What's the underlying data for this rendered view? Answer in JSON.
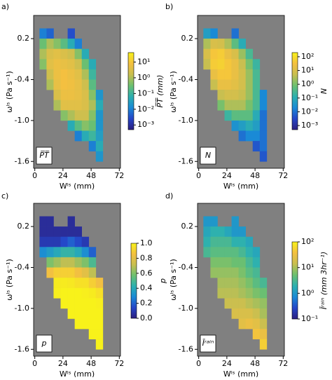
{
  "chart_data": [
    {
      "type": "heatmap",
      "panel_label": "a)",
      "inset_label": "P̅T̅",
      "xlabel": "Wˡˢ (mm)",
      "ylabel": "ωˡˢ (Pa s⁻¹)",
      "colorbar_label": "P̅T̅ (mm)",
      "xlim": [
        -1,
        73
      ],
      "ylim": [
        -1.7,
        0.54
      ],
      "xticks": [
        0,
        24,
        48,
        72
      ],
      "yticks": [
        0.2,
        -0.4,
        {
          "value": -1,
          "label": "-1.0"
        },
        -1.6
      ],
      "x_edges": [
        4,
        10,
        16,
        22,
        28,
        34,
        40,
        46,
        52,
        58,
        64
      ],
      "y_edges": [
        0.35,
        0.2,
        0.05,
        -0.1,
        -0.25,
        -0.4,
        -0.55,
        -0.7,
        -0.85,
        -1.0,
        -1.15,
        -1.3,
        -1.45,
        -1.6
      ],
      "log_color": true,
      "clim": [
        0.0005,
        40
      ],
      "cticks": [
        {
          "value": 10,
          "label": "10¹"
        },
        {
          "value": 1,
          "label": "10⁰"
        },
        {
          "value": 0.1,
          "label": "10⁻¹"
        },
        {
          "value": 0.01,
          "label": "10⁻²"
        },
        {
          "value": 0.001,
          "label": "10⁻³"
        }
      ],
      "colormap": [
        "#2c1f80",
        "#2546c8",
        "#1a8ad6",
        "#2cb0b0",
        "#6cc070",
        "#c8bf50",
        "#f4c040",
        "#f8f21a"
      ],
      "background": "#808080",
      "values": [
        [
          0.01,
          0.005,
          null,
          null,
          0.003,
          null,
          null,
          null,
          null,
          null
        ],
        [
          0.3,
          1,
          0.5,
          0.2,
          0.05,
          0.01,
          null,
          null,
          null,
          null
        ],
        [
          1,
          3,
          4,
          3,
          2,
          0.5,
          0.05,
          null,
          null,
          null
        ],
        [
          0.5,
          4,
          6,
          5,
          4,
          2,
          0.3,
          0.05,
          null,
          null
        ],
        [
          null,
          2,
          6,
          8,
          6,
          4,
          1,
          0.1,
          null,
          null
        ],
        [
          null,
          1,
          5,
          8,
          7,
          5,
          2,
          0.2,
          null,
          null
        ],
        [
          null,
          null,
          3,
          6,
          6,
          5,
          3,
          0.5,
          0.02,
          null
        ],
        [
          null,
          null,
          1,
          4,
          4,
          4,
          3,
          1,
          0.05,
          null
        ],
        [
          null,
          null,
          null,
          0.5,
          1,
          2,
          2,
          0.5,
          0.02,
          null
        ],
        [
          null,
          null,
          null,
          null,
          0.05,
          0.2,
          0.5,
          0.3,
          0.02,
          null
        ],
        [
          null,
          null,
          null,
          null,
          null,
          0.01,
          0.05,
          0.1,
          0.03,
          null
        ],
        [
          null,
          null,
          null,
          null,
          null,
          null,
          null,
          0.01,
          0.05,
          null
        ],
        [
          null,
          null,
          null,
          null,
          null,
          null,
          null,
          null,
          0.02,
          null
        ]
      ]
    },
    {
      "type": "heatmap",
      "panel_label": "b)",
      "inset_label": "N",
      "xlabel": "Wˡˢ (mm)",
      "ylabel": "ωˡˢ (Pa s⁻¹)",
      "colorbar_label": "N",
      "xlim": [
        -1,
        73
      ],
      "ylim": [
        -1.7,
        0.54
      ],
      "xticks": [
        0,
        24,
        48,
        72
      ],
      "yticks": [
        0.2,
        -0.4,
        {
          "value": -1,
          "label": "-1.0"
        },
        -1.6
      ],
      "x_edges": [
        4,
        10,
        16,
        22,
        28,
        34,
        40,
        46,
        52,
        58,
        64
      ],
      "y_edges": [
        0.35,
        0.2,
        0.05,
        -0.1,
        -0.25,
        -0.4,
        -0.55,
        -0.7,
        -0.85,
        -1.0,
        -1.15,
        -1.3,
        -1.45,
        -1.6
      ],
      "log_color": true,
      "clim": [
        0.0005,
        200
      ],
      "cticks": [
        {
          "value": 100,
          "label": "10²"
        },
        {
          "value": 10,
          "label": "10¹"
        },
        {
          "value": 1,
          "label": "10⁰"
        },
        {
          "value": 0.1,
          "label": "10⁻¹"
        },
        {
          "value": 0.01,
          "label": "10⁻²"
        },
        {
          "value": 0.001,
          "label": "10⁻³"
        }
      ],
      "colormap": [
        "#2c1f80",
        "#2546c8",
        "#1a8ad6",
        "#2cb0b0",
        "#6cc070",
        "#c8bf50",
        "#f4c040",
        "#f8f21a"
      ],
      "background": "#808080",
      "values": [
        [
          0.05,
          0.02,
          null,
          null,
          0.01,
          null,
          null,
          null,
          null,
          null
        ],
        [
          3,
          10,
          8,
          3,
          0.5,
          0.1,
          null,
          null,
          null,
          null
        ],
        [
          10,
          40,
          50,
          20,
          10,
          2,
          0.3,
          null,
          null,
          null
        ],
        [
          5,
          50,
          60,
          40,
          20,
          5,
          1,
          0.2,
          null,
          null
        ],
        [
          null,
          20,
          40,
          40,
          20,
          8,
          2,
          0.3,
          null,
          null
        ],
        [
          null,
          5,
          20,
          20,
          15,
          8,
          2,
          0.3,
          null,
          null
        ],
        [
          null,
          null,
          5,
          8,
          8,
          5,
          2,
          0.3,
          0.02,
          null
        ],
        [
          null,
          null,
          1,
          3,
          3,
          3,
          1,
          0.3,
          0.02,
          null
        ],
        [
          null,
          null,
          null,
          0.2,
          0.5,
          0.5,
          0.5,
          0.1,
          0.01,
          null
        ],
        [
          null,
          null,
          null,
          null,
          0.03,
          0.05,
          0.1,
          0.05,
          0.01,
          null
        ],
        [
          null,
          null,
          null,
          null,
          null,
          0.01,
          0.02,
          0.02,
          0.01,
          null
        ],
        [
          null,
          null,
          null,
          null,
          null,
          null,
          null,
          0.005,
          0.01,
          null
        ],
        [
          null,
          null,
          null,
          null,
          null,
          null,
          null,
          null,
          0.005,
          null
        ]
      ]
    },
    {
      "type": "heatmap",
      "panel_label": "c)",
      "inset_label": "p",
      "xlabel": "Wˡˢ (mm)",
      "ylabel": "ωˡˢ (Pa s⁻¹)",
      "colorbar_label": "p",
      "xlim": [
        -1,
        73
      ],
      "ylim": [
        -1.7,
        0.54
      ],
      "xticks": [
        0,
        24,
        48,
        72
      ],
      "yticks": [
        0.2,
        -0.4,
        {
          "value": -1,
          "label": "-1.0"
        },
        -1.6
      ],
      "x_edges": [
        4,
        10,
        16,
        22,
        28,
        34,
        40,
        46,
        52,
        58,
        64
      ],
      "y_edges": [
        0.35,
        0.2,
        0.05,
        -0.1,
        -0.25,
        -0.4,
        -0.55,
        -0.7,
        -0.85,
        -1.0,
        -1.15,
        -1.3,
        -1.45,
        -1.6
      ],
      "log_color": false,
      "clim": [
        0,
        1
      ],
      "cticks": [
        {
          "value": 1,
          "label": "1.0"
        },
        0.8,
        0.6,
        0.4,
        0.2,
        {
          "value": 0,
          "label": "0.0"
        }
      ],
      "colormap": [
        "#2c1f80",
        "#2546c8",
        "#1a8ad6",
        "#2cb0b0",
        "#6cc070",
        "#c8bf50",
        "#f4c040",
        "#f8f21a"
      ],
      "background": "#808080",
      "values": [
        [
          0.05,
          0.05,
          null,
          null,
          0.05,
          null,
          null,
          null,
          null,
          null
        ],
        [
          0.05,
          0.05,
          0.05,
          0.05,
          0.05,
          0.05,
          null,
          null,
          null,
          null
        ],
        [
          0.1,
          0.1,
          0.1,
          0.15,
          0.2,
          0.15,
          0.1,
          null,
          null,
          null
        ],
        [
          0.3,
          0.35,
          0.4,
          0.45,
          0.45,
          0.4,
          0.3,
          0.2,
          null,
          null
        ],
        [
          null,
          0.6,
          0.65,
          0.7,
          0.7,
          0.65,
          0.6,
          0.5,
          null,
          null
        ],
        [
          null,
          0.85,
          0.9,
          0.9,
          0.9,
          0.85,
          0.8,
          0.7,
          null,
          null
        ],
        [
          null,
          null,
          0.98,
          0.98,
          0.97,
          0.95,
          0.95,
          0.9,
          0.85,
          null
        ],
        [
          null,
          null,
          0.99,
          1,
          1,
          1,
          0.99,
          0.98,
          0.95,
          null
        ],
        [
          null,
          null,
          null,
          1,
          1,
          1,
          1,
          1,
          0.99,
          null
        ],
        [
          null,
          null,
          null,
          null,
          1,
          1,
          1,
          1,
          1,
          null
        ],
        [
          null,
          null,
          null,
          null,
          null,
          1,
          1,
          1,
          1,
          null
        ],
        [
          null,
          null,
          null,
          null,
          null,
          null,
          null,
          1,
          1,
          null
        ],
        [
          null,
          null,
          null,
          null,
          null,
          null,
          null,
          null,
          1,
          null
        ]
      ]
    },
    {
      "type": "heatmap",
      "panel_label": "d)",
      "inset_label": "Īʳᵃⁱⁿ",
      "xlabel": "Wˡˢ (mm)",
      "ylabel": "ωˡˢ (Pa s⁻¹)",
      "colorbar_label": "Īʳᵃⁱⁿ (mm 3hr⁻¹)",
      "xlim": [
        -1,
        73
      ],
      "ylim": [
        -1.7,
        0.54
      ],
      "xticks": [
        0,
        24,
        48,
        72
      ],
      "yticks": [
        0.2,
        -0.4,
        {
          "value": -1,
          "label": "-1.0"
        },
        -1.6
      ],
      "x_edges": [
        4,
        10,
        16,
        22,
        28,
        34,
        40,
        46,
        52,
        58,
        64
      ],
      "y_edges": [
        0.35,
        0.2,
        0.05,
        -0.1,
        -0.25,
        -0.4,
        -0.55,
        -0.7,
        -0.85,
        -1.0,
        -1.15,
        -1.3,
        -1.45,
        -1.6
      ],
      "log_color": true,
      "clim": [
        0.1,
        100
      ],
      "cticks": [
        {
          "value": 100,
          "label": "10²"
        },
        {
          "value": 10,
          "label": "10¹"
        },
        {
          "value": 1,
          "label": "10⁰"
        },
        {
          "value": 0.1,
          "label": "10⁻¹"
        }
      ],
      "colormap": [
        "#2c1f80",
        "#2546c8",
        "#1a8ad6",
        "#2cb0b0",
        "#6cc070",
        "#c8bf50",
        "#f4c040",
        "#f8f21a"
      ],
      "background": "#808080",
      "values": [
        [
          1,
          1,
          null,
          null,
          1,
          null,
          null,
          null,
          null,
          null
        ],
        [
          1.5,
          2,
          2,
          1.5,
          1,
          1,
          null,
          null,
          null,
          null
        ],
        [
          2,
          3,
          3,
          3,
          2,
          2,
          1.5,
          null,
          null,
          null
        ],
        [
          3,
          4,
          4,
          4,
          4,
          3,
          2,
          1.5,
          null,
          null
        ],
        [
          null,
          6,
          6,
          6,
          5,
          5,
          3,
          2,
          null,
          null
        ],
        [
          null,
          8,
          8,
          8,
          8,
          6,
          4,
          3,
          null,
          null
        ],
        [
          null,
          null,
          10,
          10,
          10,
          8,
          6,
          4,
          3,
          null
        ],
        [
          null,
          null,
          12,
          12,
          12,
          10,
          8,
          6,
          5,
          null
        ],
        [
          null,
          null,
          null,
          15,
          15,
          15,
          12,
          10,
          8,
          null
        ],
        [
          null,
          null,
          null,
          null,
          20,
          20,
          20,
          15,
          10,
          null
        ],
        [
          null,
          null,
          null,
          null,
          null,
          25,
          30,
          25,
          15,
          null
        ],
        [
          null,
          null,
          null,
          null,
          null,
          null,
          null,
          40,
          30,
          null
        ],
        [
          null,
          null,
          null,
          null,
          null,
          null,
          null,
          null,
          50,
          null
        ]
      ]
    }
  ]
}
